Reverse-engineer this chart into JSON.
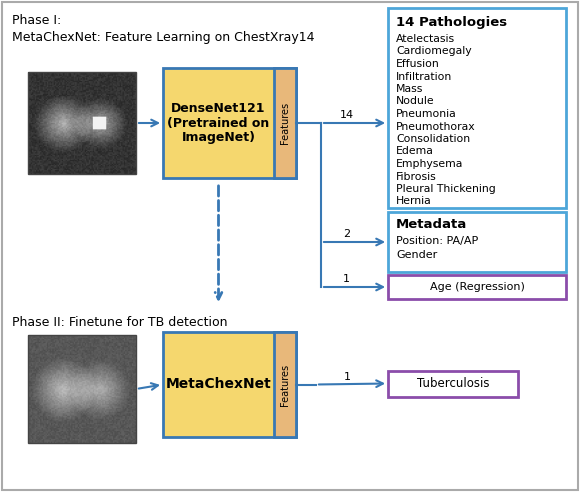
{
  "phase1_label": "Phase I:\nMetaChexNet: Feature Learning on ChestXray14",
  "phase2_label": "Phase II: Finetune for TB detection",
  "densenet_label": "DenseNet121\n(Pretrained on\nImageNet)",
  "metachexnet_label": "MetaChexNet",
  "features_label": "Features",
  "pathologies_title": "14 Pathologies",
  "pathologies_list": [
    "Atelectasis",
    "Cardiomegaly",
    "Effusion",
    "Infiltration",
    "Mass",
    "Nodule",
    "Pneumonia",
    "Pneumothorax",
    "Consolidation",
    "Edema",
    "Emphysema",
    "Fibrosis",
    "Pleural Thickening",
    "Hernia"
  ],
  "metadata_title": "Metadata",
  "metadata_list": [
    "Position: PA/AP",
    "Gender"
  ],
  "age_label": "Age (Regression)",
  "tb_label": "Tuberculosis",
  "main_box_fill": "#F5D76E",
  "features_fill": "#E8B87A",
  "pathologies_box_color": "#4DA6D9",
  "metadata_box_color": "#4DA6D9",
  "age_box_color": "#8B4DAA",
  "tb_box_color": "#8B4DAA",
  "arrow_color": "#3878B4",
  "bg_color": "#FFFFFF",
  "border_color": "#AAAAAA",
  "fig_w": 5.8,
  "fig_h": 4.92,
  "dpi": 100
}
